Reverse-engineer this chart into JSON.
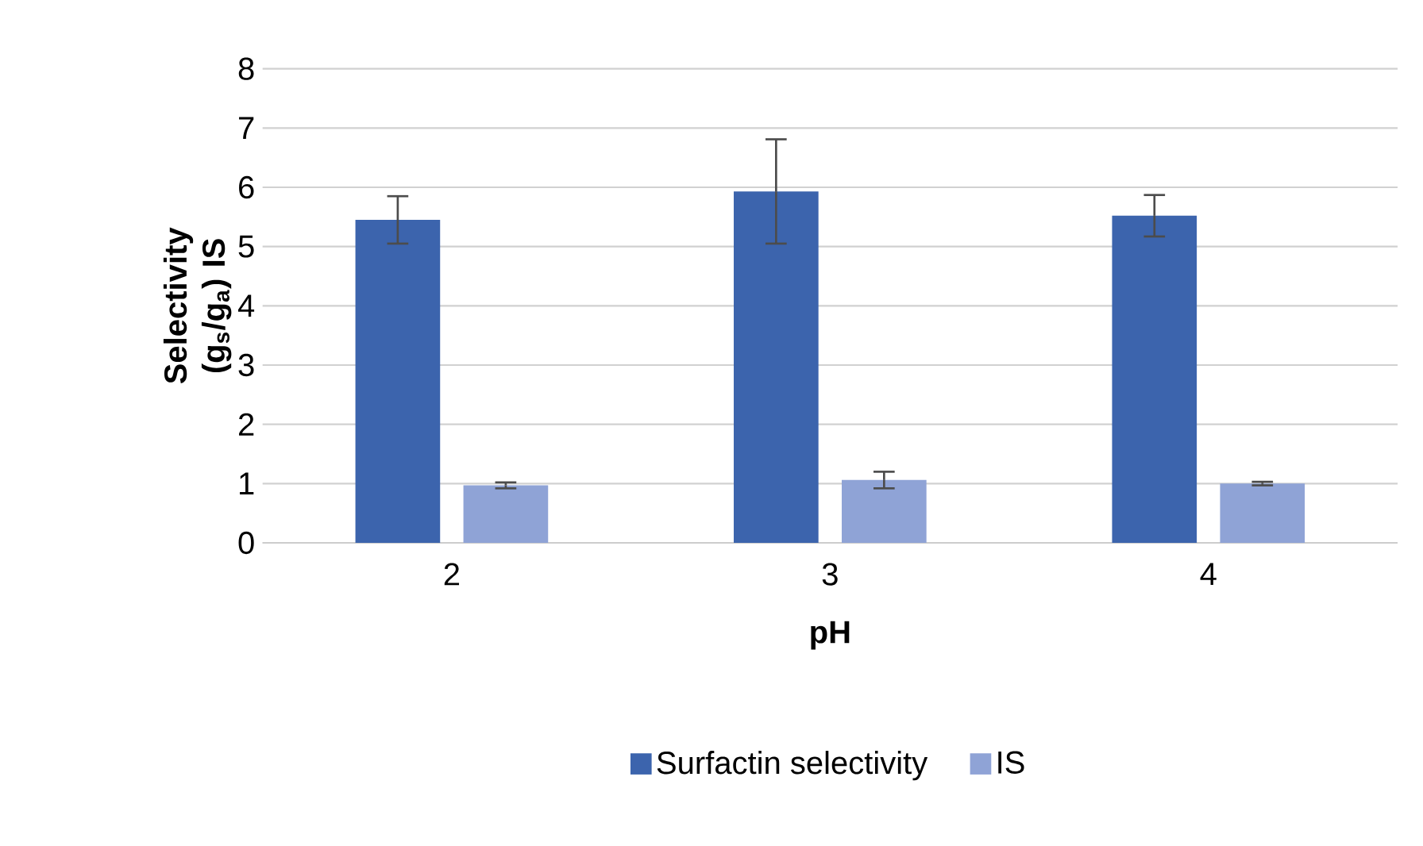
{
  "chart_data": {
    "type": "bar",
    "xlabel": "pH",
    "ylabel": "Selectivity (g$_{s}$/g$_{a}$) IS",
    "categories": [
      "2",
      "3",
      "4"
    ],
    "series": [
      {
        "name": "Surfactin selectivity",
        "color": "#3c64ad",
        "values": [
          5.45,
          5.93,
          5.52
        ],
        "errors": [
          0.4,
          0.88,
          0.35
        ]
      },
      {
        "name": "IS",
        "color": "#8fa3d6",
        "values": [
          0.97,
          1.06,
          1.0
        ],
        "errors": [
          0.05,
          0.14,
          0.03
        ]
      }
    ],
    "ylim": [
      0,
      8
    ],
    "yticks": [
      0,
      1,
      2,
      3,
      4,
      5,
      6,
      7,
      8
    ],
    "grid": "y",
    "legend": "bottom"
  }
}
